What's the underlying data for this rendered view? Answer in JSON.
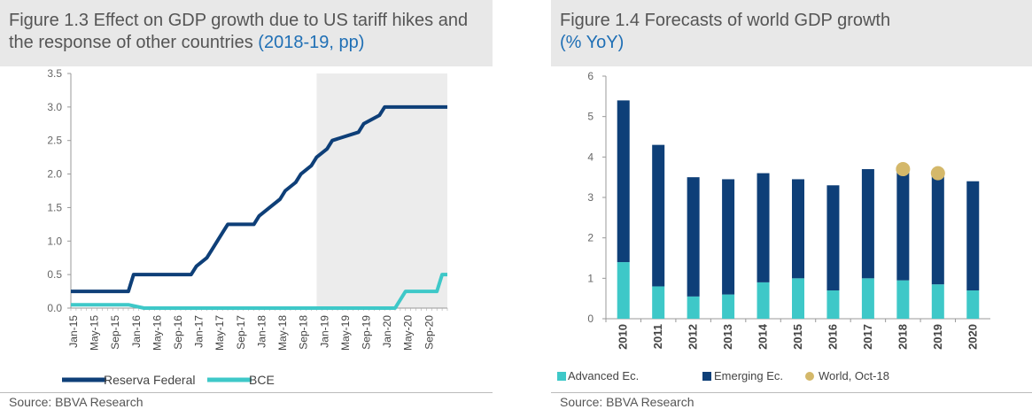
{
  "left": {
    "title_main": "Figure 1.3 Effect on GDP growth due to US tariff hikes and the response of other countries",
    "title_accent": "(2018-19, pp)",
    "source": "Source: BBVA Research"
  },
  "right": {
    "title_main": "Figure 1.4 Forecasts of world GDP growth",
    "title_accent": "(% YoY)",
    "source": "Source: BBVA Research"
  },
  "chart_data": [
    {
      "type": "line",
      "title": "Figure 1.3 Effect on GDP growth due to US tariff hikes and the response of other countries",
      "x_labels": [
        "Jan-15",
        "May-15",
        "Sep-15",
        "Jan-16",
        "May-16",
        "Sep-16",
        "Jan-17",
        "May-17",
        "Sep-17",
        "Jan-18",
        "May-18",
        "Sep-18",
        "Jan-19",
        "May-19",
        "Sep-19",
        "Jan-20",
        "May-20",
        "Sep-20"
      ],
      "x_range_months": [
        "2015-01",
        "2020-12"
      ],
      "ylim": [
        0,
        3.5
      ],
      "yticks": [
        "0.0",
        "0.5",
        "1.0",
        "1.5",
        "2.0",
        "2.5",
        "3.0",
        "3.5"
      ],
      "forecast_shade_from": "2018-12",
      "legend_position": "bottom",
      "series": [
        {
          "name": "Reserva Federal",
          "color": "#0e3f78",
          "points": [
            [
              "2015-01",
              0.25
            ],
            [
              "2015-12",
              0.25
            ],
            [
              "2016-01",
              0.5
            ],
            [
              "2016-12",
              0.5
            ],
            [
              "2017-01",
              0.625
            ],
            [
              "2017-03",
              0.75
            ],
            [
              "2017-04",
              0.875
            ],
            [
              "2017-05",
              1.0
            ],
            [
              "2017-06",
              1.125
            ],
            [
              "2017-07",
              1.25
            ],
            [
              "2017-12",
              1.25
            ],
            [
              "2018-01",
              1.375
            ],
            [
              "2018-03",
              1.5
            ],
            [
              "2018-05",
              1.625
            ],
            [
              "2018-06",
              1.75
            ],
            [
              "2018-08",
              1.875
            ],
            [
              "2018-09",
              2.0
            ],
            [
              "2018-11",
              2.125
            ],
            [
              "2018-12",
              2.25
            ],
            [
              "2019-02",
              2.375
            ],
            [
              "2019-03",
              2.5
            ],
            [
              "2019-08",
              2.625
            ],
            [
              "2019-09",
              2.75
            ],
            [
              "2019-12",
              2.875
            ],
            [
              "2020-01",
              3.0
            ],
            [
              "2020-12",
              3.0
            ]
          ]
        },
        {
          "name": "BCE",
          "color": "#3ec8c8",
          "points": [
            [
              "2015-01",
              0.05
            ],
            [
              "2015-12",
              0.05
            ],
            [
              "2016-03",
              0.0
            ],
            [
              "2020-03",
              0.0
            ],
            [
              "2020-05",
              0.25
            ],
            [
              "2020-11",
              0.25
            ],
            [
              "2020-12",
              0.5
            ]
          ]
        }
      ]
    },
    {
      "type": "bar",
      "title": "Figure 1.4 Forecasts of world GDP growth",
      "categories": [
        "2010",
        "2011",
        "2012",
        "2013",
        "2014",
        "2015",
        "2016",
        "2017",
        "2018",
        "2019",
        "2020"
      ],
      "ylim": [
        0,
        6
      ],
      "yticks": [
        "0",
        "1",
        "2",
        "3",
        "4",
        "5",
        "6"
      ],
      "stacked": true,
      "legend_position": "bottom",
      "series": [
        {
          "name": "Advanced Ec.",
          "color": "#3ec8c8",
          "values": [
            1.4,
            0.8,
            0.55,
            0.6,
            0.9,
            1.0,
            0.7,
            1.0,
            0.95,
            0.85,
            0.7
          ]
        },
        {
          "name": "Emerging Ec.",
          "color": "#0e3f78",
          "values": [
            4.0,
            3.5,
            2.95,
            2.85,
            2.7,
            2.45,
            2.6,
            2.7,
            2.75,
            2.75,
            2.7
          ]
        },
        {
          "name": "World, Oct-18",
          "color": "#d4b86a",
          "type": "scatter",
          "values": [
            null,
            null,
            null,
            null,
            null,
            null,
            null,
            null,
            3.7,
            3.6,
            null
          ]
        }
      ]
    }
  ]
}
